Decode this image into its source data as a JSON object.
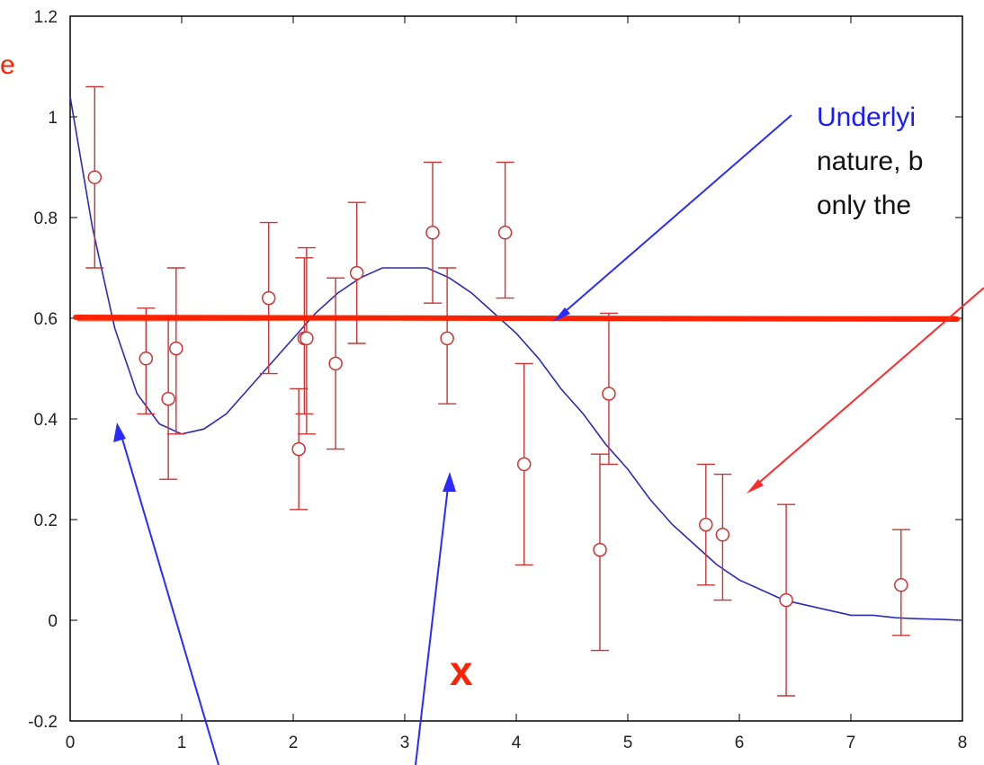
{
  "chart_data": {
    "type": "scatter",
    "title": "",
    "xlabel": "",
    "ylabel": "",
    "xlim": [
      0,
      8
    ],
    "ylim": [
      -0.2,
      1.2
    ],
    "x_ticks": [
      0,
      1,
      2,
      3,
      4,
      5,
      6,
      7,
      8
    ],
    "y_ticks": [
      -0.2,
      0,
      0.2,
      0.4,
      0.6,
      0.8,
      1,
      1.2
    ],
    "x_tick_labels": [
      "0",
      "1",
      "2",
      "3",
      "4",
      "5",
      "6",
      "7",
      "8"
    ],
    "y_tick_labels": [
      "-0.2",
      "0",
      "0.2",
      "0.4",
      "0.6",
      "0.8",
      "1",
      "1.2"
    ],
    "grid": false,
    "series": [
      {
        "kind": "errorbar",
        "color": "#cc3333",
        "points": [
          {
            "x": 0.22,
            "y": 0.88,
            "lo": 0.7,
            "hi": 1.06
          },
          {
            "x": 0.68,
            "y": 0.52,
            "lo": 0.41,
            "hi": 0.62
          },
          {
            "x": 0.88,
            "y": 0.44,
            "lo": 0.28,
            "hi": 0.6
          },
          {
            "x": 0.95,
            "y": 0.54,
            "lo": 0.37,
            "hi": 0.7
          },
          {
            "x": 1.78,
            "y": 0.64,
            "lo": 0.49,
            "hi": 0.79
          },
          {
            "x": 2.05,
            "y": 0.34,
            "lo": 0.22,
            "hi": 0.46
          },
          {
            "x": 2.1,
            "y": 0.56,
            "lo": 0.41,
            "hi": 0.72
          },
          {
            "x": 2.12,
            "y": 0.56,
            "lo": 0.37,
            "hi": 0.74
          },
          {
            "x": 2.38,
            "y": 0.51,
            "lo": 0.34,
            "hi": 0.68
          },
          {
            "x": 2.57,
            "y": 0.69,
            "lo": 0.55,
            "hi": 0.83
          },
          {
            "x": 3.25,
            "y": 0.77,
            "lo": 0.63,
            "hi": 0.91
          },
          {
            "x": 3.38,
            "y": 0.56,
            "lo": 0.43,
            "hi": 0.7
          },
          {
            "x": 3.9,
            "y": 0.77,
            "lo": 0.64,
            "hi": 0.91
          },
          {
            "x": 4.07,
            "y": 0.31,
            "lo": 0.11,
            "hi": 0.51
          },
          {
            "x": 4.75,
            "y": 0.14,
            "lo": -0.06,
            "hi": 0.33
          },
          {
            "x": 4.83,
            "y": 0.45,
            "lo": 0.31,
            "hi": 0.61
          },
          {
            "x": 5.7,
            "y": 0.19,
            "lo": 0.07,
            "hi": 0.31
          },
          {
            "x": 5.85,
            "y": 0.17,
            "lo": 0.04,
            "hi": 0.29
          },
          {
            "x": 6.42,
            "y": 0.04,
            "lo": -0.15,
            "hi": 0.23
          },
          {
            "x": 7.45,
            "y": 0.07,
            "lo": -0.03,
            "hi": 0.18
          }
        ]
      },
      {
        "kind": "curve",
        "color": "#2b2bb8",
        "x": [
          0,
          0.2,
          0.4,
          0.6,
          0.8,
          1.0,
          1.2,
          1.4,
          1.6,
          1.8,
          2.0,
          2.2,
          2.4,
          2.6,
          2.8,
          3.0,
          3.2,
          3.4,
          3.6,
          3.8,
          4.0,
          4.2,
          4.4,
          4.6,
          4.8,
          5.0,
          5.2,
          5.4,
          5.6,
          5.8,
          6.0,
          6.2,
          6.4,
          6.6,
          6.8,
          7.0,
          7.2,
          7.4,
          7.6,
          7.8,
          8.0
        ],
        "y": [
          1.04,
          0.78,
          0.58,
          0.45,
          0.39,
          0.37,
          0.38,
          0.41,
          0.46,
          0.51,
          0.56,
          0.61,
          0.65,
          0.68,
          0.7,
          0.7,
          0.7,
          0.68,
          0.65,
          0.61,
          0.57,
          0.52,
          0.46,
          0.41,
          0.35,
          0.3,
          0.24,
          0.19,
          0.15,
          0.11,
          0.08,
          0.06,
          0.04,
          0.03,
          0.02,
          0.01,
          0.01,
          0.005,
          0.003,
          0.002,
          0.0
        ]
      },
      {
        "kind": "hline",
        "color": "#ff2200",
        "y": 0.6
      }
    ],
    "annotations": {
      "left_fragment": "e",
      "top_right_line1": "Underlyi",
      "top_right_line2": "nature, b",
      "top_right_line3": "only the",
      "x_mark": "x"
    }
  }
}
